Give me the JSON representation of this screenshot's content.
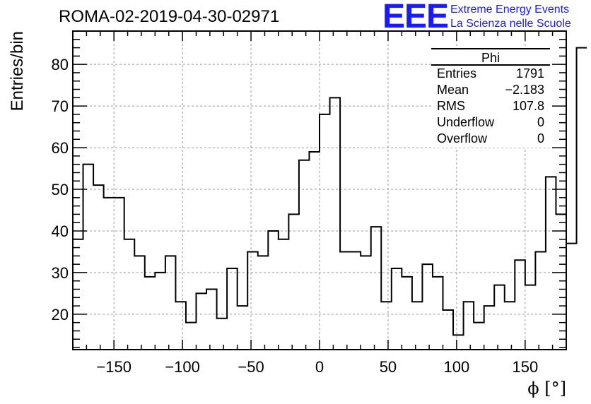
{
  "title": "ROMA-02-2019-04-30-02971",
  "logo": {
    "mark": "EEE",
    "line1": "Extreme Energy Events",
    "line2": "La Scienza nelle Scuole",
    "color": "#1a1aff"
  },
  "stats": {
    "name": "Phi",
    "rows": [
      {
        "label": "Entries",
        "value": "1791"
      },
      {
        "label": "Mean",
        "value": "−2.183"
      },
      {
        "label": "RMS",
        "value": "107.8"
      },
      {
        "label": "Underflow",
        "value": "0"
      },
      {
        "label": "Overflow",
        "value": "0"
      }
    ]
  },
  "chart_data": {
    "type": "bar",
    "style": "step-histogram",
    "xlabel": "ϕ [°]",
    "ylabel": "Entries/bin",
    "xlim": [
      -180,
      180
    ],
    "ylim": [
      11.5,
      88
    ],
    "bin_width": 7.5,
    "x_ticks": [
      -150,
      -100,
      -50,
      0,
      50,
      100,
      150
    ],
    "x_tick_labels": [
      "−150",
      "−100",
      "−50",
      "0",
      "50",
      "100",
      "150"
    ],
    "y_ticks": [
      20,
      30,
      40,
      50,
      60,
      70,
      80
    ],
    "y_tick_labels": [
      "20",
      "30",
      "40",
      "50",
      "60",
      "70",
      "80"
    ],
    "grid": true,
    "bin_edges_start": -180,
    "values": [
      38,
      56,
      51,
      48,
      48,
      38,
      34,
      29,
      30,
      34,
      23,
      18,
      25,
      26,
      19,
      31,
      22,
      35,
      34,
      40,
      38,
      44,
      57,
      59,
      68,
      72,
      35,
      35,
      34,
      41,
      23,
      31,
      29,
      23,
      32,
      29,
      21,
      15,
      23,
      18,
      22,
      27,
      23,
      33,
      27,
      35,
      53,
      44,
      37,
      84
    ]
  }
}
